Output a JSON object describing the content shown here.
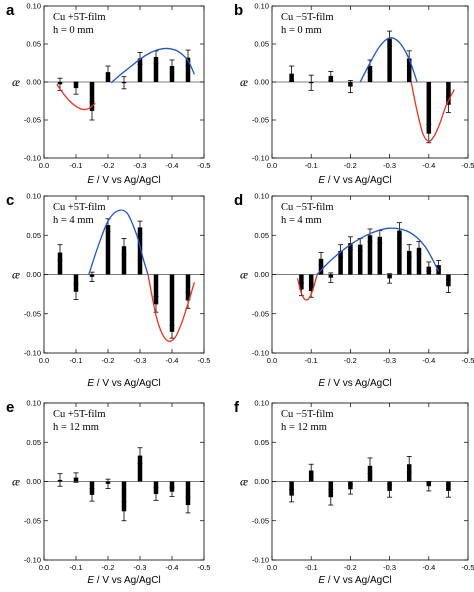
{
  "shared_xlabel": {
    "var": "E",
    "rest": "/ V vs Ag/AgCl"
  },
  "chart_data": [
    {
      "type": "bar",
      "letter": "a",
      "ylabel": "æ",
      "annotations": [
        "Cu +5T-film",
        "h = 0 mm"
      ],
      "xlim": [
        0,
        -0.5
      ],
      "ylim": [
        -0.1,
        0.1
      ],
      "xticks": [
        0.0,
        -0.1,
        -0.2,
        -0.3,
        -0.4,
        -0.5
      ],
      "xtick_labels": [
        "0.0",
        "-0.1",
        "-0.2",
        "-0.3",
        "-0.4",
        "-0.5"
      ],
      "yticks": [
        0.1,
        0.05,
        0.0,
        -0.05,
        -0.1
      ],
      "ytick_labels": [
        "0.10",
        "0.05",
        "0.00",
        "-0.05",
        "-0.10"
      ],
      "x": [
        -0.05,
        -0.1,
        -0.15,
        -0.2,
        -0.25,
        -0.3,
        -0.35,
        -0.4,
        -0.45
      ],
      "values": [
        -0.003,
        -0.008,
        -0.038,
        0.013,
        -0.001,
        0.031,
        0.033,
        0.021,
        0.032
      ],
      "errors": [
        0.008,
        0.008,
        0.012,
        0.008,
        0.008,
        0.008,
        0.008,
        0.008,
        0.01
      ],
      "fits": [
        {
          "color": "#e8321e",
          "x": [
            -0.04,
            -0.06,
            -0.08,
            -0.1,
            -0.12,
            -0.14,
            -0.16
          ],
          "y": [
            -0.003,
            -0.015,
            -0.025,
            -0.032,
            -0.036,
            -0.035,
            -0.028
          ]
        },
        {
          "color": "#1f56c9",
          "x": [
            -0.21,
            -0.24,
            -0.27,
            -0.3,
            -0.33,
            -0.36,
            -0.39,
            -0.42,
            -0.45,
            -0.47
          ],
          "y": [
            -0.001,
            0.01,
            0.02,
            0.03,
            0.038,
            0.043,
            0.044,
            0.04,
            0.028,
            0.01
          ]
        }
      ]
    },
    {
      "type": "bar",
      "letter": "b",
      "ylabel": "æ",
      "annotations": [
        "Cu −5T-film",
        "h = 0 mm"
      ],
      "xlim": [
        0,
        -0.5
      ],
      "ylim": [
        -0.1,
        0.1
      ],
      "xticks": [
        0.0,
        -0.1,
        -0.2,
        -0.3,
        -0.4,
        -0.5
      ],
      "xtick_labels": [
        "0.0",
        "-0.1",
        "-0.2",
        "-0.3",
        "-0.4",
        "-0.5"
      ],
      "yticks": [
        0.1,
        0.05,
        0.0,
        -0.05,
        -0.1
      ],
      "ytick_labels": [
        "0.10",
        "0.05",
        "0.00",
        "-0.05",
        "-0.10"
      ],
      "x": [
        -0.05,
        -0.1,
        -0.15,
        -0.2,
        -0.25,
        -0.3,
        -0.35,
        -0.4,
        -0.45
      ],
      "values": [
        0.011,
        -0.001,
        0.008,
        -0.006,
        0.021,
        0.057,
        0.031,
        -0.068,
        -0.03
      ],
      "errors": [
        0.01,
        0.01,
        0.006,
        0.008,
        0.008,
        0.01,
        0.01,
        0.012,
        0.01
      ],
      "fits": [
        {
          "color": "#1f56c9",
          "x": [
            -0.225,
            -0.25,
            -0.275,
            -0.3,
            -0.325,
            -0.35,
            -0.37
          ],
          "y": [
            0.0,
            0.025,
            0.047,
            0.058,
            0.052,
            0.03,
            0.0
          ]
        },
        {
          "color": "#e8321e",
          "x": [
            -0.355,
            -0.37,
            -0.385,
            -0.4,
            -0.415,
            -0.43,
            -0.445,
            -0.465
          ],
          "y": [
            0.0,
            -0.038,
            -0.068,
            -0.078,
            -0.07,
            -0.052,
            -0.03,
            -0.01
          ]
        }
      ]
    },
    {
      "type": "bar",
      "letter": "c",
      "ylabel": "æ",
      "annotations": [
        "Cu +5T-film",
        "h = 4 mm"
      ],
      "xlim": [
        0,
        -0.5
      ],
      "ylim": [
        -0.1,
        0.1
      ],
      "xticks": [
        0.0,
        -0.1,
        -0.2,
        -0.3,
        -0.4,
        -0.5
      ],
      "xtick_labels": [
        "0.0",
        "-0.1",
        "-0.2",
        "-0.3",
        "-0.4",
        "-0.5"
      ],
      "yticks": [
        0.1,
        0.05,
        0.0,
        -0.05,
        -0.1
      ],
      "ytick_labels": [
        "0.10",
        "0.05",
        "0.00",
        "-0.05",
        "-0.10"
      ],
      "x": [
        -0.05,
        -0.1,
        -0.15,
        -0.2,
        -0.25,
        -0.3,
        -0.35,
        -0.4,
        -0.45
      ],
      "values": [
        0.028,
        -0.022,
        -0.003,
        0.063,
        0.036,
        0.06,
        -0.038,
        -0.073,
        -0.033
      ],
      "errors": [
        0.01,
        0.01,
        0.006,
        0.008,
        0.01,
        0.008,
        0.01,
        0.008,
        0.01
      ],
      "fits": [
        {
          "color": "#1f56c9",
          "x": [
            -0.14,
            -0.17,
            -0.2,
            -0.23,
            -0.26,
            -0.29,
            -0.31,
            -0.325
          ],
          "y": [
            0.0,
            0.037,
            0.068,
            0.081,
            0.078,
            0.05,
            0.02,
            0.0
          ]
        },
        {
          "color": "#e8321e",
          "x": [
            -0.325,
            -0.35,
            -0.37,
            -0.39,
            -0.41,
            -0.43,
            -0.45,
            -0.47
          ],
          "y": [
            0.0,
            -0.052,
            -0.076,
            -0.085,
            -0.08,
            -0.062,
            -0.037,
            -0.01
          ]
        }
      ]
    },
    {
      "type": "bar",
      "letter": "d",
      "ylabel": "æ",
      "annotations": [
        "Cu −5T-film",
        "h = 4 mm"
      ],
      "xlim": [
        0,
        -0.5
      ],
      "ylim": [
        -0.1,
        0.1
      ],
      "xticks": [
        0.0,
        -0.1,
        -0.2,
        -0.3,
        -0.4,
        -0.5
      ],
      "xtick_labels": [
        "0.0",
        "-0.1",
        "-0.2",
        "-0.3",
        "-0.4",
        "-0.5"
      ],
      "yticks": [
        0.1,
        0.05,
        0.0,
        -0.05,
        -0.1
      ],
      "ytick_labels": [
        "0.10",
        "0.05",
        "0.00",
        "-0.05",
        "-0.10"
      ],
      "x": [
        -0.075,
        -0.1,
        -0.125,
        -0.15,
        -0.175,
        -0.2,
        -0.225,
        -0.25,
        -0.275,
        -0.3,
        -0.325,
        -0.35,
        -0.375,
        -0.4,
        -0.425,
        -0.45
      ],
      "values": [
        -0.019,
        -0.021,
        0.02,
        -0.004,
        0.03,
        0.04,
        0.038,
        0.05,
        0.048,
        -0.005,
        0.056,
        0.03,
        0.034,
        0.01,
        0.012,
        -0.015
      ],
      "errors": [
        0.008,
        0.008,
        0.008,
        0.006,
        0.008,
        0.008,
        0.008,
        0.008,
        0.008,
        0.006,
        0.01,
        0.008,
        0.008,
        0.006,
        0.006,
        0.008
      ],
      "fits": [
        {
          "color": "#e8321e",
          "x": [
            -0.065,
            -0.075,
            -0.085,
            -0.095,
            -0.105,
            -0.115
          ],
          "y": [
            -0.005,
            -0.024,
            -0.032,
            -0.03,
            -0.018,
            0.0
          ]
        },
        {
          "color": "#1f56c9",
          "x": [
            -0.115,
            -0.15,
            -0.2,
            -0.25,
            -0.3,
            -0.35,
            -0.39,
            -0.425
          ],
          "y": [
            0.0,
            0.018,
            0.038,
            0.052,
            0.059,
            0.054,
            0.036,
            0.004
          ]
        }
      ]
    },
    {
      "type": "bar",
      "letter": "e",
      "ylabel": "æ",
      "annotations": [
        "Cu +5T-film",
        "h = 12 mm"
      ],
      "xlim": [
        0,
        -0.5
      ],
      "ylim": [
        -0.1,
        0.1
      ],
      "xticks": [
        0.0,
        -0.1,
        -0.2,
        -0.3,
        -0.4,
        -0.5
      ],
      "xtick_labels": [
        "0.0",
        "-0.1",
        "-0.2",
        "-0.3",
        "-0.4",
        "-0.5"
      ],
      "yticks": [
        0.1,
        0.05,
        0.0,
        -0.05,
        -0.1
      ],
      "ytick_labels": [
        "0.10",
        "0.05",
        "0.00",
        "-0.05",
        "-0.10"
      ],
      "x": [
        -0.05,
        -0.1,
        -0.15,
        -0.2,
        -0.25,
        -0.3,
        -0.35,
        -0.4,
        -0.45
      ],
      "values": [
        0.002,
        0.005,
        -0.017,
        -0.003,
        -0.038,
        0.033,
        -0.016,
        -0.013,
        -0.03
      ],
      "errors": [
        0.008,
        0.006,
        0.008,
        0.006,
        0.012,
        0.01,
        0.008,
        0.006,
        0.01
      ],
      "fits": []
    },
    {
      "type": "bar",
      "letter": "f",
      "ylabel": "æ",
      "annotations": [
        "Cu −5T-film",
        "h = 12 mm"
      ],
      "xlim": [
        0,
        -0.5
      ],
      "ylim": [
        -0.1,
        0.1
      ],
      "xticks": [
        0.0,
        -0.1,
        -0.2,
        -0.3,
        -0.4,
        -0.5
      ],
      "xtick_labels": [
        "0.0",
        "-0.1",
        "-0.2",
        "-0.3",
        "-0.4",
        "-0.5"
      ],
      "yticks": [
        0.1,
        0.05,
        0.0,
        -0.05,
        -0.1
      ],
      "ytick_labels": [
        "0.10",
        "0.05",
        "0.00",
        "-0.05",
        "-0.10"
      ],
      "x": [
        -0.05,
        -0.1,
        -0.15,
        -0.2,
        -0.25,
        -0.3,
        -0.35,
        -0.4,
        -0.45
      ],
      "values": [
        -0.018,
        0.014,
        -0.02,
        -0.01,
        0.02,
        -0.012,
        0.022,
        -0.006,
        -0.012
      ],
      "errors": [
        0.008,
        0.008,
        0.01,
        0.006,
        0.01,
        0.008,
        0.01,
        0.006,
        0.008
      ],
      "fits": []
    }
  ]
}
